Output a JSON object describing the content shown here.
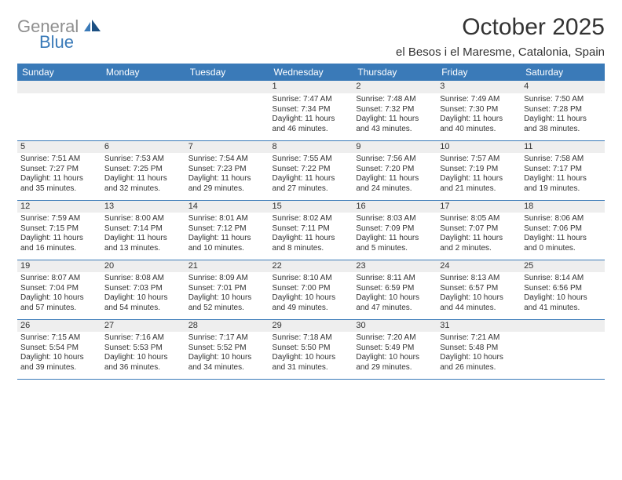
{
  "logo": {
    "general": "General",
    "blue": "Blue"
  },
  "title": "October 2025",
  "location": "el Besos i el Maresme, Catalonia, Spain",
  "day_headers": [
    "Sunday",
    "Monday",
    "Tuesday",
    "Wednesday",
    "Thursday",
    "Friday",
    "Saturday"
  ],
  "colors": {
    "header_bg": "#3a7ab8",
    "header_text": "#ffffff",
    "daynum_bg": "#eeeeee",
    "text": "#333333",
    "border": "#3a7ab8",
    "logo_gray": "#8f8f8f",
    "logo_blue": "#3a7ab8",
    "background": "#ffffff"
  },
  "typography": {
    "title_fontsize": 30,
    "location_fontsize": 15,
    "header_fontsize": 12,
    "daynum_fontsize": 11,
    "data_fontsize": 10,
    "logo_fontsize": 22
  },
  "weeks": [
    [
      null,
      null,
      null,
      {
        "day": "1",
        "sunrise": "Sunrise: 7:47 AM",
        "sunset": "Sunset: 7:34 PM",
        "daylight": "Daylight: 11 hours and 46 minutes."
      },
      {
        "day": "2",
        "sunrise": "Sunrise: 7:48 AM",
        "sunset": "Sunset: 7:32 PM",
        "daylight": "Daylight: 11 hours and 43 minutes."
      },
      {
        "day": "3",
        "sunrise": "Sunrise: 7:49 AM",
        "sunset": "Sunset: 7:30 PM",
        "daylight": "Daylight: 11 hours and 40 minutes."
      },
      {
        "day": "4",
        "sunrise": "Sunrise: 7:50 AM",
        "sunset": "Sunset: 7:28 PM",
        "daylight": "Daylight: 11 hours and 38 minutes."
      }
    ],
    [
      {
        "day": "5",
        "sunrise": "Sunrise: 7:51 AM",
        "sunset": "Sunset: 7:27 PM",
        "daylight": "Daylight: 11 hours and 35 minutes."
      },
      {
        "day": "6",
        "sunrise": "Sunrise: 7:53 AM",
        "sunset": "Sunset: 7:25 PM",
        "daylight": "Daylight: 11 hours and 32 minutes."
      },
      {
        "day": "7",
        "sunrise": "Sunrise: 7:54 AM",
        "sunset": "Sunset: 7:23 PM",
        "daylight": "Daylight: 11 hours and 29 minutes."
      },
      {
        "day": "8",
        "sunrise": "Sunrise: 7:55 AM",
        "sunset": "Sunset: 7:22 PM",
        "daylight": "Daylight: 11 hours and 27 minutes."
      },
      {
        "day": "9",
        "sunrise": "Sunrise: 7:56 AM",
        "sunset": "Sunset: 7:20 PM",
        "daylight": "Daylight: 11 hours and 24 minutes."
      },
      {
        "day": "10",
        "sunrise": "Sunrise: 7:57 AM",
        "sunset": "Sunset: 7:19 PM",
        "daylight": "Daylight: 11 hours and 21 minutes."
      },
      {
        "day": "11",
        "sunrise": "Sunrise: 7:58 AM",
        "sunset": "Sunset: 7:17 PM",
        "daylight": "Daylight: 11 hours and 19 minutes."
      }
    ],
    [
      {
        "day": "12",
        "sunrise": "Sunrise: 7:59 AM",
        "sunset": "Sunset: 7:15 PM",
        "daylight": "Daylight: 11 hours and 16 minutes."
      },
      {
        "day": "13",
        "sunrise": "Sunrise: 8:00 AM",
        "sunset": "Sunset: 7:14 PM",
        "daylight": "Daylight: 11 hours and 13 minutes."
      },
      {
        "day": "14",
        "sunrise": "Sunrise: 8:01 AM",
        "sunset": "Sunset: 7:12 PM",
        "daylight": "Daylight: 11 hours and 10 minutes."
      },
      {
        "day": "15",
        "sunrise": "Sunrise: 8:02 AM",
        "sunset": "Sunset: 7:11 PM",
        "daylight": "Daylight: 11 hours and 8 minutes."
      },
      {
        "day": "16",
        "sunrise": "Sunrise: 8:03 AM",
        "sunset": "Sunset: 7:09 PM",
        "daylight": "Daylight: 11 hours and 5 minutes."
      },
      {
        "day": "17",
        "sunrise": "Sunrise: 8:05 AM",
        "sunset": "Sunset: 7:07 PM",
        "daylight": "Daylight: 11 hours and 2 minutes."
      },
      {
        "day": "18",
        "sunrise": "Sunrise: 8:06 AM",
        "sunset": "Sunset: 7:06 PM",
        "daylight": "Daylight: 11 hours and 0 minutes."
      }
    ],
    [
      {
        "day": "19",
        "sunrise": "Sunrise: 8:07 AM",
        "sunset": "Sunset: 7:04 PM",
        "daylight": "Daylight: 10 hours and 57 minutes."
      },
      {
        "day": "20",
        "sunrise": "Sunrise: 8:08 AM",
        "sunset": "Sunset: 7:03 PM",
        "daylight": "Daylight: 10 hours and 54 minutes."
      },
      {
        "day": "21",
        "sunrise": "Sunrise: 8:09 AM",
        "sunset": "Sunset: 7:01 PM",
        "daylight": "Daylight: 10 hours and 52 minutes."
      },
      {
        "day": "22",
        "sunrise": "Sunrise: 8:10 AM",
        "sunset": "Sunset: 7:00 PM",
        "daylight": "Daylight: 10 hours and 49 minutes."
      },
      {
        "day": "23",
        "sunrise": "Sunrise: 8:11 AM",
        "sunset": "Sunset: 6:59 PM",
        "daylight": "Daylight: 10 hours and 47 minutes."
      },
      {
        "day": "24",
        "sunrise": "Sunrise: 8:13 AM",
        "sunset": "Sunset: 6:57 PM",
        "daylight": "Daylight: 10 hours and 44 minutes."
      },
      {
        "day": "25",
        "sunrise": "Sunrise: 8:14 AM",
        "sunset": "Sunset: 6:56 PM",
        "daylight": "Daylight: 10 hours and 41 minutes."
      }
    ],
    [
      {
        "day": "26",
        "sunrise": "Sunrise: 7:15 AM",
        "sunset": "Sunset: 5:54 PM",
        "daylight": "Daylight: 10 hours and 39 minutes."
      },
      {
        "day": "27",
        "sunrise": "Sunrise: 7:16 AM",
        "sunset": "Sunset: 5:53 PM",
        "daylight": "Daylight: 10 hours and 36 minutes."
      },
      {
        "day": "28",
        "sunrise": "Sunrise: 7:17 AM",
        "sunset": "Sunset: 5:52 PM",
        "daylight": "Daylight: 10 hours and 34 minutes."
      },
      {
        "day": "29",
        "sunrise": "Sunrise: 7:18 AM",
        "sunset": "Sunset: 5:50 PM",
        "daylight": "Daylight: 10 hours and 31 minutes."
      },
      {
        "day": "30",
        "sunrise": "Sunrise: 7:20 AM",
        "sunset": "Sunset: 5:49 PM",
        "daylight": "Daylight: 10 hours and 29 minutes."
      },
      {
        "day": "31",
        "sunrise": "Sunrise: 7:21 AM",
        "sunset": "Sunset: 5:48 PM",
        "daylight": "Daylight: 10 hours and 26 minutes."
      },
      null
    ]
  ]
}
